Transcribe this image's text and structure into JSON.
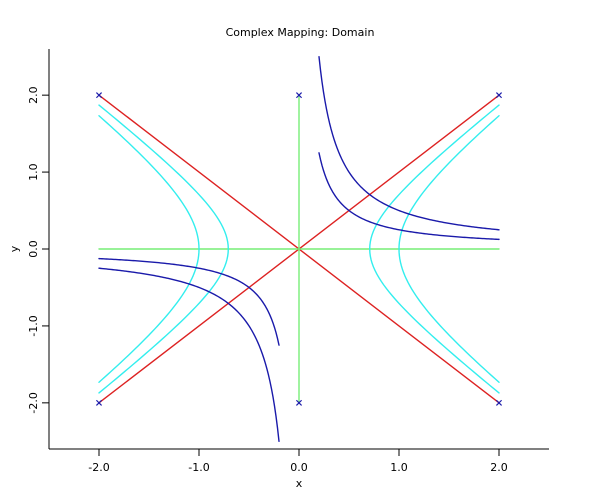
{
  "chart_data": {
    "type": "line",
    "title": "Complex Mapping: Domain",
    "xlabel": "x",
    "ylabel": "y",
    "xlim": [
      -2.5,
      2.5
    ],
    "ylim": [
      -2.6,
      2.6
    ],
    "xticks": [
      -2.0,
      -1.0,
      0.0,
      1.0,
      2.0
    ],
    "xtick_labels": [
      "-2.0",
      "-1.0",
      "0.0",
      "1.0",
      "2.0"
    ],
    "yticks": [
      -2.0,
      -1.0,
      0.0,
      1.0,
      2.0
    ],
    "ytick_labels": [
      "-2.0",
      "-1.0",
      "0.0",
      "1.0",
      "2.0"
    ],
    "grid": false,
    "colors": {
      "diagonals": "#dd2222",
      "axes_lines": "#77ee77",
      "hyperbola_re": "#33eeee",
      "hyperbola_im": "#1a1aaa",
      "markers": "#1a1aaa"
    },
    "series": [
      {
        "id": "diag-1",
        "kind": "segment",
        "color_key": "diagonals",
        "x": [
          -2,
          2
        ],
        "y": [
          2,
          -2
        ]
      },
      {
        "id": "diag-2",
        "kind": "segment",
        "color_key": "diagonals",
        "x": [
          -2,
          2
        ],
        "y": [
          -2,
          2
        ]
      },
      {
        "id": "h-axis",
        "kind": "segment",
        "color_key": "axes_lines",
        "x": [
          -2,
          2
        ],
        "y": [
          0,
          0
        ]
      },
      {
        "id": "v-axis",
        "kind": "segment",
        "color_key": "axes_lines",
        "x": [
          0,
          0
        ],
        "y": [
          -2,
          2
        ]
      },
      {
        "id": "re-right-1",
        "kind": "hyperbola_re",
        "color_key": "hyperbola_re",
        "side": 1,
        "c": 1.0,
        "ymax": 1.732
      },
      {
        "id": "re-right-05",
        "kind": "hyperbola_re",
        "color_key": "hyperbola_re",
        "side": 1,
        "c": 0.5,
        "ymax": 1.871
      },
      {
        "id": "re-left-1",
        "kind": "hyperbola_re",
        "color_key": "hyperbola_re",
        "side": -1,
        "c": 1.0,
        "ymax": 1.732
      },
      {
        "id": "re-left-05",
        "kind": "hyperbola_re",
        "color_key": "hyperbola_re",
        "side": -1,
        "c": 0.5,
        "ymax": 1.871
      },
      {
        "id": "im-q1-05",
        "kind": "hyperbola_im",
        "color_key": "hyperbola_im",
        "k": 0.5,
        "xrange": [
          0.2,
          2
        ]
      },
      {
        "id": "im-q1-025",
        "kind": "hyperbola_im",
        "color_key": "hyperbola_im",
        "k": 0.25,
        "xrange": [
          0.2,
          2
        ]
      },
      {
        "id": "im-q3-05",
        "kind": "hyperbola_im",
        "color_key": "hyperbola_im",
        "k": 0.5,
        "xrange": [
          -2,
          -0.2
        ]
      },
      {
        "id": "im-q3-025",
        "kind": "hyperbola_im",
        "color_key": "hyperbola_im",
        "k": 0.25,
        "xrange": [
          -2,
          -0.2
        ]
      }
    ],
    "markers": {
      "symbol": "x",
      "color_key": "markers",
      "points": [
        [
          -2,
          2
        ],
        [
          0,
          2
        ],
        [
          2,
          2
        ],
        [
          -2,
          -2
        ],
        [
          0,
          -2
        ],
        [
          2,
          -2
        ]
      ]
    }
  }
}
